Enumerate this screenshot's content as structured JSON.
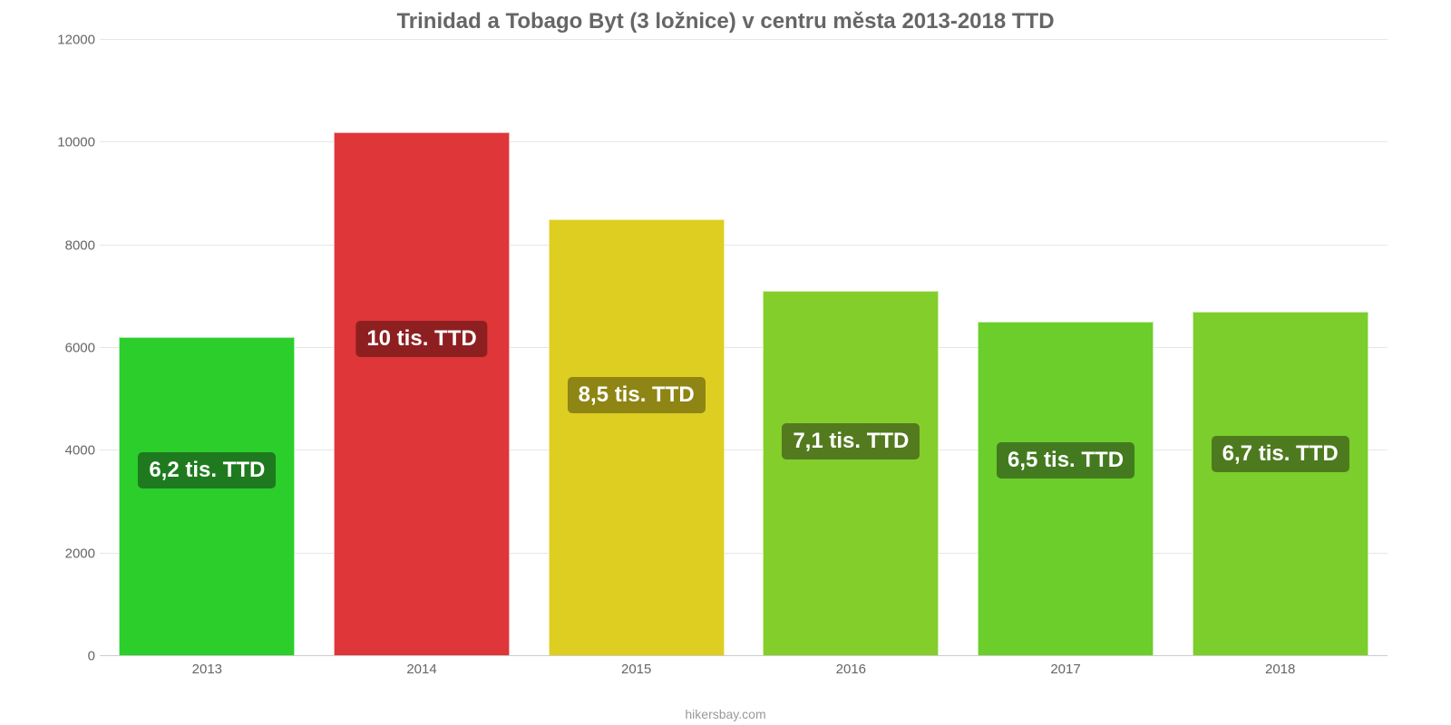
{
  "chart": {
    "type": "bar",
    "title": "Trinidad a Tobago Byt (3 ložnice) v centru města 2013-2018 TTD",
    "title_fontsize": 24,
    "title_color": "#666666",
    "attribution": "hikersbay.com",
    "attribution_fontsize": 14,
    "attribution_color": "#999999",
    "background_color": "#ffffff",
    "grid_color": "#e6e6e6",
    "categories": [
      "2013",
      "2014",
      "2015",
      "2016",
      "2017",
      "2018"
    ],
    "values": [
      6200,
      10200,
      8500,
      7100,
      6500,
      6700
    ],
    "value_labels": [
      "6,2 tis. TTD",
      "10 tis. TTD",
      "8,5 tis. TTD",
      "7,1 tis. TTD",
      "6,5 tis. TTD",
      "6,7 tis. TTD"
    ],
    "bar_colors": [
      "#2bce2b",
      "#de3639",
      "#dece21",
      "#84ce2b",
      "#6bce2b",
      "#7bce2b"
    ],
    "label_bg_colors": [
      "#1f7a1f",
      "#8e1f21",
      "#8e8514",
      "#547a1f",
      "#437a1f",
      "#4e7a1f"
    ],
    "label_fontsize": 24,
    "ylim": [
      0,
      12000
    ],
    "ytick_step": 2000,
    "yticks": [
      "0",
      "2000",
      "4000",
      "6000",
      "8000",
      "10000",
      "12000"
    ],
    "axis_fontsize": 15,
    "axis_color": "#666666",
    "bar_width": 0.82,
    "bar_label_top_offset_pct": 36
  }
}
